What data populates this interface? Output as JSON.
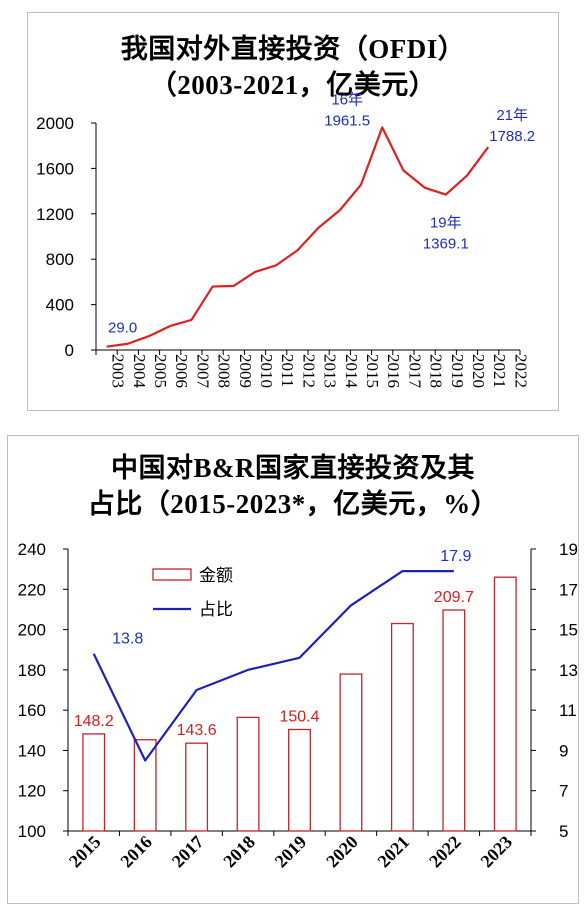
{
  "colors": {
    "line1": "#e02020",
    "bar_edge": "#c0262a",
    "line2": "#1c22b8",
    "annotation_blue": "#1f2fbf",
    "annotation_red": "#d42020"
  },
  "chart_data": [
    {
      "type": "line",
      "title_line1": "我国对外直接投资（OFDI）",
      "title_line2": "（2003-2021，亿美元）",
      "x": [
        "2003",
        "2004",
        "2005",
        "2006",
        "2007",
        "2008",
        "2009",
        "2010",
        "2011",
        "2012",
        "2013",
        "2014",
        "2015",
        "2016",
        "2017",
        "2018",
        "2019",
        "2020",
        "2021",
        "2022"
      ],
      "series": [
        {
          "values": [
            29.0,
            55,
            122.6,
            211.6,
            265.1,
            559.1,
            565.3,
            688.1,
            746.5,
            878.0,
            1078.4,
            1231.2,
            1456.7,
            1961.5,
            1582.9,
            1430.4,
            1369.1,
            1537.1,
            1788.2,
            null
          ]
        }
      ],
      "ylim": [
        0,
        2000
      ],
      "yticks": [
        "0",
        "400",
        "800",
        "1200",
        "1600",
        "2000"
      ],
      "annotations": [
        {
          "index": 0,
          "text": "29.0"
        },
        {
          "index": 13,
          "line1": "16年",
          "line2": "1961.5"
        },
        {
          "index": 16,
          "line1": "19年",
          "line2": "1369.1"
        },
        {
          "index": 18,
          "line1": "21年",
          "line2": "1788.2"
        }
      ]
    },
    {
      "type": "bar",
      "title_line1": "中国对B&R国家直接投资及其",
      "title_line2": "占比（2015-2023*，亿美元，%）",
      "categories": [
        "2015",
        "2016",
        "2017",
        "2018",
        "2019",
        "2020",
        "2021",
        "2022",
        "2023"
      ],
      "series": [
        {
          "name": "金额",
          "type": "bar",
          "axis": "left",
          "values": [
            148.2,
            145.3,
            143.6,
            156.4,
            150.4,
            177.9,
            203.0,
            209.7,
            226.0
          ]
        },
        {
          "name": "占比",
          "type": "line",
          "axis": "right",
          "values": [
            13.8,
            8.5,
            12.0,
            13.0,
            13.6,
            16.2,
            17.9,
            17.9,
            null
          ]
        }
      ],
      "ylim_left": [
        100,
        240
      ],
      "ylim_right": [
        5,
        19
      ],
      "yticks_left": [
        "100",
        "120",
        "140",
        "160",
        "180",
        "200",
        "220",
        "240"
      ],
      "yticks_right": [
        "5",
        "7",
        "9",
        "11",
        "13",
        "15",
        "17",
        "19"
      ],
      "legend_position": "top-left",
      "bar_labels": [
        {
          "index": 0,
          "text": "148.2"
        },
        {
          "index": 2,
          "text": "143.6"
        },
        {
          "index": 4,
          "text": "150.4"
        },
        {
          "index": 7,
          "text": "209.7"
        }
      ],
      "line_labels": [
        {
          "index": 0,
          "text": "13.8"
        },
        {
          "index": 7,
          "text": "17.9"
        }
      ]
    }
  ]
}
